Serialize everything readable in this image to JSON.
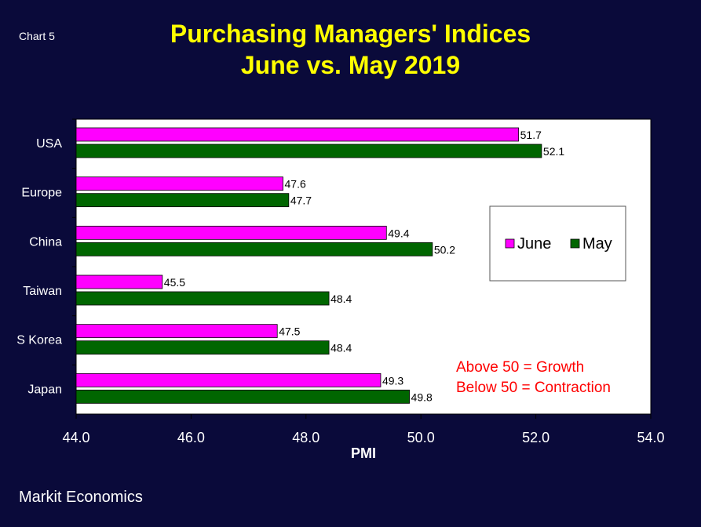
{
  "header": {
    "chart_number": "Chart 5",
    "title_line1": "Purchasing Managers' Indices",
    "title_line2": "June vs. May 2019"
  },
  "footer": {
    "source": "Markit Economics"
  },
  "chart_data": {
    "type": "bar",
    "orientation": "horizontal",
    "title": "Purchasing Managers' Indices June vs. May 2019",
    "xlabel": "PMI",
    "ylabel": "",
    "xlim": [
      44.0,
      54.0
    ],
    "xticks": [
      "44.0",
      "46.0",
      "48.0",
      "50.0",
      "52.0",
      "54.0"
    ],
    "categories": [
      "USA",
      "Europe",
      "China",
      "Taiwan",
      "S Korea",
      "Japan"
    ],
    "series": [
      {
        "name": "June",
        "color": "#ff00ff",
        "values": [
          51.7,
          47.6,
          49.4,
          45.5,
          47.5,
          49.3
        ],
        "labels": [
          "51.7",
          "47.6",
          "49.4",
          "45.5",
          "47.5",
          "49.3"
        ]
      },
      {
        "name": "May",
        "color": "#006600",
        "values": [
          52.1,
          47.7,
          50.2,
          48.4,
          48.4,
          49.8
        ],
        "labels": [
          "52.1",
          "47.7",
          "50.2",
          "48.4",
          "48.4",
          "49.8"
        ]
      }
    ],
    "legend_position": "right",
    "grid": false,
    "annotations": [
      "Above 50 = Growth",
      "Below 50 = Contraction"
    ],
    "annotation_color": "#ff0000"
  }
}
